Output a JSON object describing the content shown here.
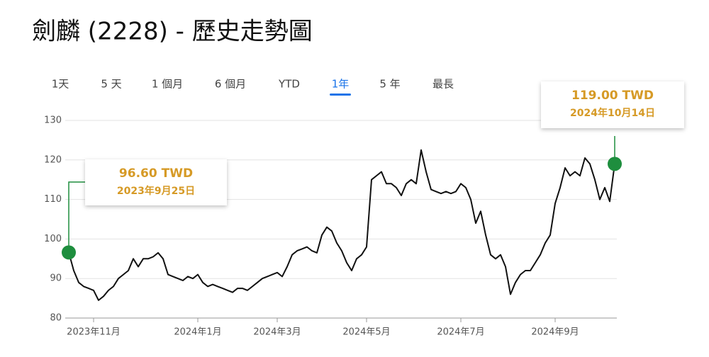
{
  "chart_data": {
    "type": "line",
    "title": "劍麟 (2228) - 歷史走勢圖",
    "range_tabs": [
      "1天",
      "5 天",
      "1 個月",
      "6 個月",
      "YTD",
      "1年",
      "5 年",
      "最長"
    ],
    "selected_tab": "1年",
    "categories": [
      null,
      null,
      null,
      null,
      null,
      "2023年11月",
      null,
      null,
      null,
      null,
      null,
      null,
      null,
      null,
      null,
      null,
      null,
      null,
      null,
      null,
      null,
      null,
      null,
      null,
      null,
      null,
      "2024年1月",
      null,
      null,
      null,
      null,
      null,
      null,
      null,
      null,
      null,
      null,
      null,
      null,
      null,
      null,
      null,
      "2024年3月",
      null,
      null,
      null,
      null,
      null,
      null,
      null,
      null,
      null,
      null,
      null,
      null,
      null,
      null,
      null,
      null,
      null,
      "2024年5月",
      null,
      null,
      null,
      null,
      null,
      null,
      null,
      null,
      null,
      null,
      null,
      null,
      null,
      null,
      null,
      null,
      null,
      null,
      "2024年7月",
      null,
      null,
      null,
      null,
      null,
      null,
      null,
      null,
      null,
      null,
      null,
      null,
      null,
      null,
      null,
      null,
      null,
      null,
      "2024年9月",
      null,
      null,
      null,
      null,
      null,
      null,
      null,
      null,
      null,
      null,
      null,
      null
    ],
    "values": [
      96.6,
      92,
      89,
      88,
      87.5,
      87,
      84.5,
      85.5,
      87,
      88,
      90,
      91,
      92,
      95,
      93,
      95,
      95,
      95.5,
      96.5,
      95,
      91,
      90.5,
      90,
      89.5,
      90.5,
      90,
      91,
      89,
      88,
      88.5,
      88,
      87.5,
      87,
      86.5,
      87.5,
      87.5,
      87,
      88,
      89,
      90,
      90.5,
      91,
      91.5,
      90.5,
      93,
      96,
      97,
      97.5,
      98,
      97,
      96.5,
      101,
      103,
      102,
      99,
      97,
      94,
      92,
      95,
      96,
      98,
      115,
      116,
      117,
      114,
      114,
      113,
      111,
      114,
      115,
      114,
      122.5,
      117,
      112.5,
      112,
      111.5,
      112,
      111.5,
      112,
      114,
      113,
      110,
      104,
      107,
      101,
      96,
      95,
      96,
      93,
      86,
      89,
      91,
      92,
      92,
      94,
      96,
      99,
      101,
      109,
      113,
      118,
      116,
      117,
      116,
      120.5,
      119,
      115,
      110,
      113,
      109.5,
      119
    ],
    "color": "#111111",
    "marker_color": "#1e8e3e",
    "annotation_color": "#d69a26",
    "annotations": [
      {
        "price": "96.60 TWD",
        "date": "2023年9月25日"
      },
      {
        "price": "119.00 TWD",
        "date": "2024年10月14日"
      }
    ],
    "ylim": [
      80,
      130
    ],
    "yticks": [
      80,
      90,
      100,
      110,
      120,
      130
    ],
    "grid": true
  }
}
